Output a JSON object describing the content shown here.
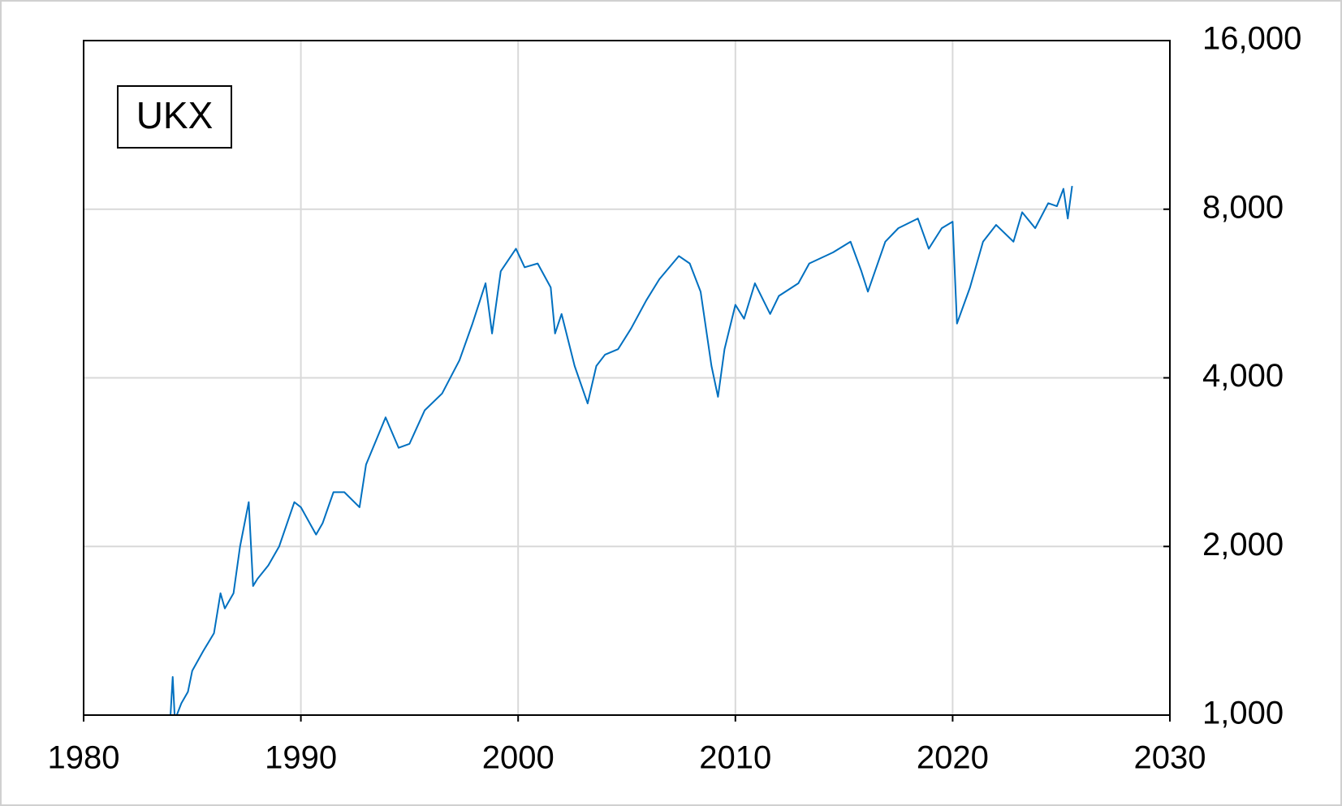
{
  "chart_data": {
    "type": "line",
    "log_scale_y": true,
    "grid": true,
    "legend": "upper left",
    "xlim": [
      1980,
      2030
    ],
    "xticks": [
      1980,
      1990,
      2000,
      2010,
      2020,
      2030
    ],
    "ylim": [
      1000,
      16000
    ],
    "yticks": [
      {
        "value": 1000,
        "label": "1,000"
      },
      {
        "value": 2000,
        "label": "2,000"
      },
      {
        "value": 4000,
        "label": "4,000"
      },
      {
        "value": 8000,
        "label": "8,000"
      },
      {
        "value": 16000,
        "label": "16,000"
      }
    ],
    "x": [
      1984.0,
      1984.1,
      1984.2,
      1984.5,
      1984.8,
      1985.0,
      1985.5,
      1986.0,
      1986.3,
      1986.5,
      1986.9,
      1987.2,
      1987.6,
      1987.8,
      1988.0,
      1988.5,
      1989.0,
      1989.7,
      1990.0,
      1990.7,
      1991.0,
      1991.5,
      1992.0,
      1992.7,
      1993.0,
      1993.9,
      1994.5,
      1995.0,
      1995.7,
      1996.5,
      1997.3,
      1997.9,
      1998.5,
      1998.8,
      1999.2,
      1999.9,
      2000.3,
      2000.9,
      2001.5,
      2001.7,
      2002.0,
      2002.6,
      2003.2,
      2003.6,
      2004.0,
      2004.6,
      2005.2,
      2005.9,
      2006.5,
      2007.4,
      2007.9,
      2008.4,
      2008.9,
      2009.2,
      2009.5,
      2010.0,
      2010.4,
      2010.9,
      2011.6,
      2012.0,
      2012.9,
      2013.4,
      2014.5,
      2015.3,
      2015.8,
      2016.1,
      2016.9,
      2017.5,
      2018.4,
      2018.9,
      2019.5,
      2020.0,
      2020.2,
      2020.8,
      2021.4,
      2022.0,
      2022.8,
      2023.2,
      2023.8,
      2024.4,
      2024.8,
      2025.1,
      2025.3,
      2025.5
    ],
    "series": [
      {
        "name": "UKX",
        "color": "#0070c0",
        "values": [
          1000,
          1170,
          980,
          1050,
          1100,
          1200,
          1300,
          1400,
          1650,
          1550,
          1650,
          2000,
          2400,
          1700,
          1750,
          1850,
          2000,
          2400,
          2350,
          2100,
          2200,
          2500,
          2500,
          2350,
          2800,
          3400,
          3000,
          3050,
          3500,
          3750,
          4300,
          5000,
          5900,
          4800,
          6200,
          6800,
          6300,
          6400,
          5800,
          4800,
          5200,
          4200,
          3600,
          4200,
          4400,
          4500,
          4900,
          5500,
          6000,
          6600,
          6400,
          5700,
          4200,
          3700,
          4500,
          5400,
          5100,
          5900,
          5200,
          5600,
          5900,
          6400,
          6700,
          7000,
          6200,
          5700,
          7000,
          7400,
          7700,
          6800,
          7400,
          7600,
          5000,
          5800,
          7000,
          7500,
          7000,
          7900,
          7400,
          8200,
          8100,
          8700,
          7700,
          8800
        ]
      }
    ]
  }
}
